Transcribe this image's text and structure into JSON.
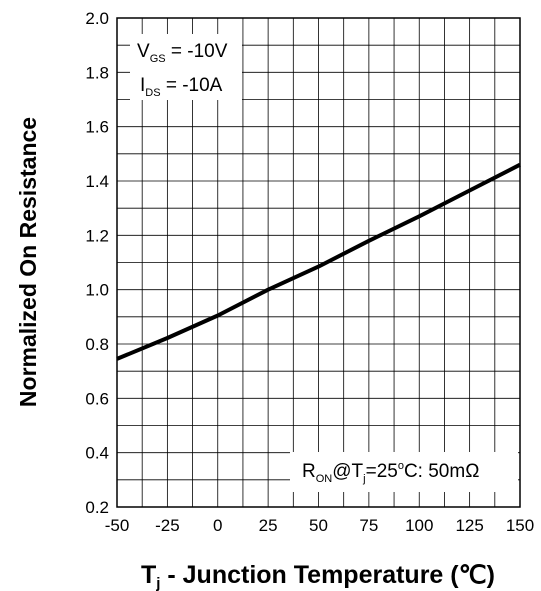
{
  "chart_data": {
    "type": "line",
    "xlabel_main": "T",
    "xlabel_sub": "j",
    "xlabel_rest": " - Junction Temperature (℃)",
    "ylabel": "Normalized On Resistance",
    "xlim": [
      -50,
      150
    ],
    "ylim": [
      0.2,
      2.0
    ],
    "x_ticks": [
      -50,
      -25,
      0,
      25,
      50,
      75,
      100,
      125,
      150
    ],
    "y_ticks": [
      0.2,
      0.4,
      0.6,
      0.8,
      1.0,
      1.2,
      1.4,
      1.6,
      1.8,
      2.0
    ],
    "x_tick_labels": [
      "-50",
      "-25",
      "0",
      "25",
      "50",
      "75",
      "100",
      "125",
      "150"
    ],
    "y_tick_labels": [
      "0.2",
      "0.4",
      "0.6",
      "0.8",
      "1.0",
      "1.2",
      "1.4",
      "1.6",
      "1.8",
      "2.0"
    ],
    "grid": true,
    "series": [
      {
        "x": [
          -50,
          -25,
          0,
          25,
          50,
          75,
          100,
          125,
          150
        ],
        "y": [
          0.745,
          0.822,
          0.905,
          1.0,
          1.085,
          1.18,
          1.27,
          1.365,
          1.46
        ]
      }
    ],
    "annotations": {
      "vgs": {
        "main": "V",
        "sub": "GS",
        "rest": " = -10V"
      },
      "ids": {
        "main": "I",
        "sub": "DS",
        "rest": " = -10A"
      },
      "ron": {
        "main": "R",
        "sub1": "ON",
        "mid": "@T",
        "sub2": "j",
        "rest1": "=25",
        "sup": "o",
        "rest2": "C: 50mΩ"
      }
    },
    "line_color": "#000000",
    "grid_color": "#000000"
  }
}
